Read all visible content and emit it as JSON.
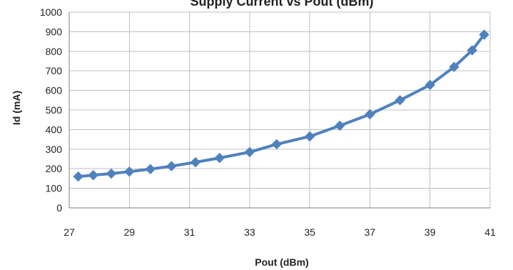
{
  "chart_data": {
    "type": "line",
    "title": "Supply Current vs Pout (dBm)",
    "xlabel": "Pout (dBm)",
    "ylabel": "Id (mA)",
    "xlim": [
      27,
      41
    ],
    "ylim": [
      0,
      1000
    ],
    "x_ticks": [
      27,
      29,
      31,
      33,
      35,
      37,
      39,
      41
    ],
    "y_ticks": [
      0,
      100,
      200,
      300,
      400,
      500,
      600,
      700,
      800,
      900,
      1000
    ],
    "grid": true,
    "legend": "none",
    "series": [
      {
        "color": "#4f81bd",
        "marker": "diamond",
        "x": [
          27.3,
          27.8,
          28.4,
          29.0,
          29.7,
          30.4,
          31.2,
          32.0,
          33.0,
          33.9,
          35.0,
          36.0,
          37.0,
          38.0,
          39.0,
          39.8,
          40.4,
          40.8
        ],
        "y": [
          160,
          167,
          175,
          185,
          198,
          213,
          233,
          255,
          285,
          325,
          365,
          420,
          478,
          550,
          628,
          720,
          805,
          885
        ]
      }
    ]
  }
}
